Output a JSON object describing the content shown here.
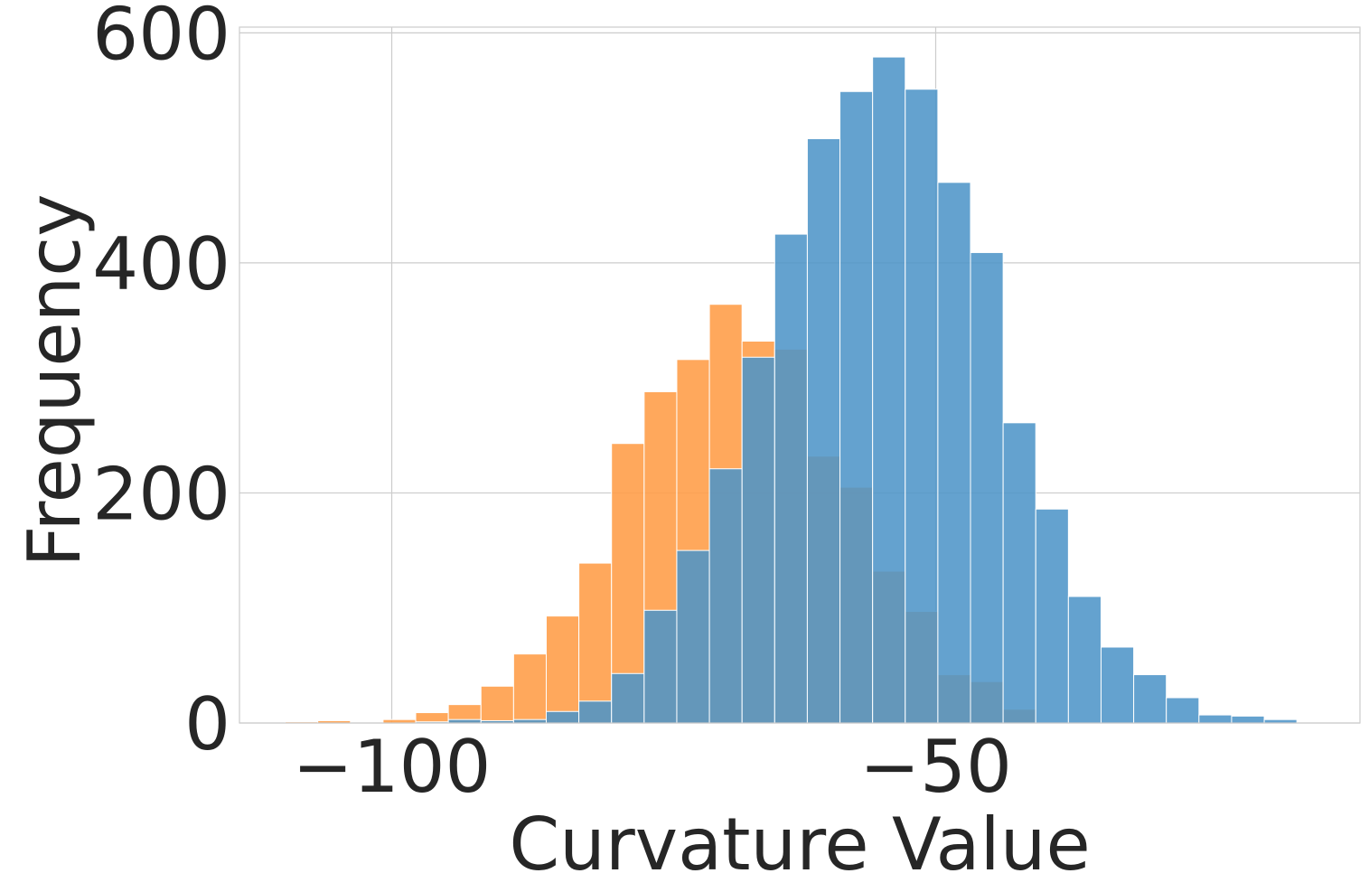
{
  "chart_data": {
    "type": "histogram",
    "xlabel": "Curvature Value",
    "ylabel": "Frequency",
    "xlim": [
      -114,
      -11
    ],
    "ylim": [
      0,
      605
    ],
    "x_ticks": [
      -100,
      -50
    ],
    "x_tick_labels": [
      "−100",
      "−50"
    ],
    "y_ticks": [
      0,
      200,
      400,
      600
    ],
    "y_tick_labels": [
      "0",
      "200",
      "400",
      "600"
    ],
    "grid": true,
    "legend": "none",
    "series": [
      {
        "color": "#ff9f4a",
        "opacity": 0.9,
        "bin_edges": [
          -109.8,
          -106.8,
          -103.8,
          -100.8,
          -97.8,
          -94.8,
          -91.8,
          -88.8,
          -85.8,
          -82.8,
          -79.8,
          -76.8,
          -73.8,
          -70.8,
          -67.8,
          -64.8,
          -61.8,
          -58.8,
          -55.8,
          -52.8,
          -49.8,
          -46.8,
          -43.8,
          -40.8
        ],
        "counts": [
          1,
          2,
          0,
          3,
          9,
          16,
          32,
          60,
          93,
          139,
          243,
          288,
          316,
          364,
          332,
          325,
          232,
          205,
          132,
          97,
          42,
          36,
          12
        ]
      },
      {
        "color": "#4d94c8",
        "opacity": 0.87,
        "bin_edges": [
          -97.8,
          -94.8,
          -91.8,
          -88.8,
          -85.8,
          -82.8,
          -79.8,
          -76.8,
          -73.8,
          -70.8,
          -67.8,
          -64.8,
          -61.8,
          -58.8,
          -55.8,
          -52.8,
          -49.8,
          -46.8,
          -43.8,
          -40.8,
          -37.8,
          -34.8,
          -31.8,
          -28.8,
          -25.8,
          -22.8,
          -19.8,
          -16.8,
          -13.8
        ],
        "counts": [
          1,
          3,
          2,
          3,
          10,
          19,
          43,
          98,
          150,
          221,
          318,
          425,
          508,
          549,
          579,
          551,
          470,
          409,
          261,
          186,
          110,
          66,
          42,
          22,
          7,
          6,
          3,
          0
        ]
      }
    ]
  }
}
